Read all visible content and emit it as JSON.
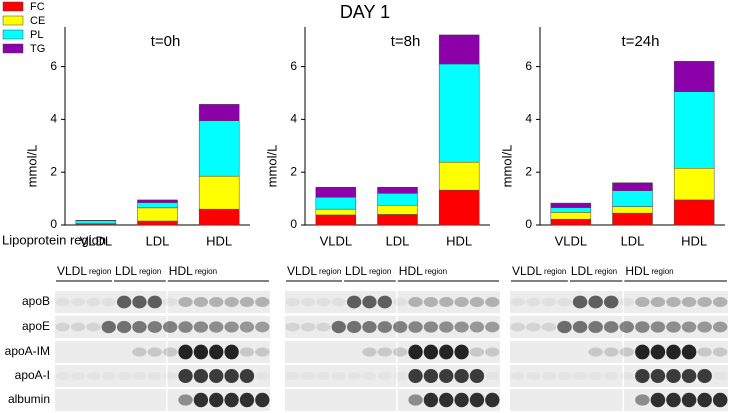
{
  "title": "DAY 1",
  "chart_data": [
    {
      "type": "stacked_bar",
      "title": "t=0h",
      "y_label": "mmol/L",
      "x_label": "Lipoprotein region",
      "categories": [
        "VLDL",
        "LDL",
        "HDL"
      ],
      "ylim": [
        0,
        7.5
      ],
      "yticks": [
        0,
        2,
        4,
        6
      ],
      "series": [
        {
          "name": "FC",
          "color": "#ff0000",
          "values": [
            0.03,
            0.15,
            0.6
          ]
        },
        {
          "name": "CE",
          "color": "#ffff00",
          "values": [
            0.03,
            0.5,
            1.25
          ]
        },
        {
          "name": "PL",
          "color": "#00ffff",
          "values": [
            0.1,
            0.2,
            2.1
          ]
        },
        {
          "name": "TG",
          "color": "#8b00a8",
          "values": [
            0.02,
            0.1,
            0.62
          ]
        }
      ]
    },
    {
      "type": "stacked_bar",
      "title": "t=8h",
      "y_label": "mmol/L",
      "categories": [
        "VLDL",
        "LDL",
        "HDL"
      ],
      "ylim": [
        0,
        7.5
      ],
      "yticks": [
        0,
        2,
        4,
        6
      ],
      "series": [
        {
          "color": "#ff0000",
          "values": [
            0.38,
            0.4,
            1.32
          ]
        },
        {
          "color": "#ffff00",
          "values": [
            0.22,
            0.35,
            1.06
          ]
        },
        {
          "color": "#00ffff",
          "values": [
            0.45,
            0.45,
            3.72
          ]
        },
        {
          "color": "#8b00a8",
          "values": [
            0.38,
            0.23,
            1.1
          ]
        }
      ]
    },
    {
      "type": "stacked_bar",
      "title": "t=24h",
      "y_label": "mmol/L",
      "categories": [
        "VLDL",
        "LDL",
        "HDL"
      ],
      "ylim": [
        0,
        7.5
      ],
      "yticks": [
        0,
        2,
        4,
        6
      ],
      "series": [
        {
          "color": "#ff0000",
          "values": [
            0.22,
            0.45,
            0.95
          ]
        },
        {
          "color": "#ffff00",
          "values": [
            0.26,
            0.25,
            1.2
          ]
        },
        {
          "color": "#00ffff",
          "values": [
            0.18,
            0.6,
            2.9
          ]
        },
        {
          "color": "#8b00a8",
          "values": [
            0.17,
            0.3,
            1.15
          ]
        }
      ]
    }
  ],
  "blots": {
    "regions": [
      {
        "name": "VLDL",
        "sub": "region"
      },
      {
        "name": "LDL",
        "sub": "region"
      },
      {
        "name": "HDL",
        "sub": "region"
      }
    ],
    "rows": [
      "apoB",
      "apoE",
      "apoA-IM",
      "apoA-I",
      "albumin"
    ]
  }
}
